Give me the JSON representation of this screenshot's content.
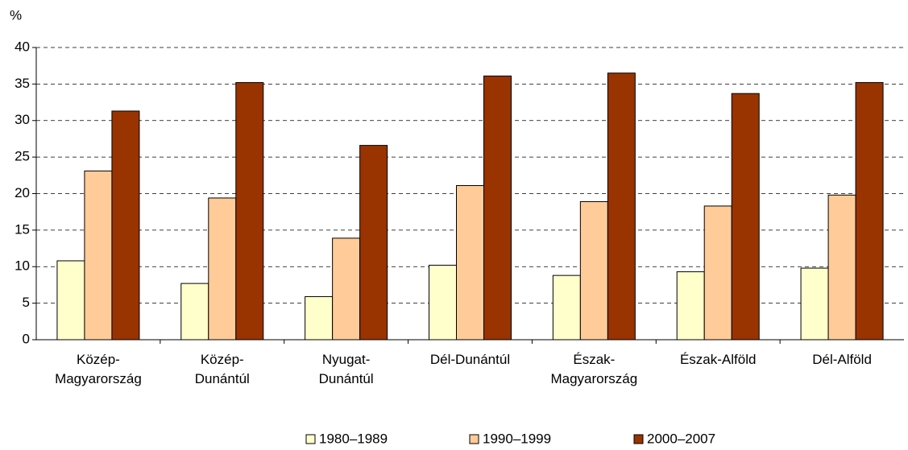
{
  "chart_data": {
    "type": "bar",
    "y_label": "%",
    "categories": [
      "Közép-\nMagyarország",
      "Közép-\nDunántúl",
      "Nyugat-\nDunántúl",
      "Dél-Dunántúl",
      "Észak-\nMagyarország",
      "Észak-Alföld",
      "Dél-Alföld"
    ],
    "series": [
      {
        "name": "1980–1989",
        "color": "#ffffcc",
        "values": [
          10.8,
          7.7,
          5.9,
          10.2,
          8.8,
          9.3,
          9.8
        ]
      },
      {
        "name": "1990–1999",
        "color": "#ffcc99",
        "values": [
          23.1,
          19.4,
          13.9,
          21.1,
          18.9,
          18.3,
          19.8
        ]
      },
      {
        "name": "2000–2007",
        "color": "#993300",
        "values": [
          31.3,
          35.2,
          26.6,
          36.1,
          36.5,
          33.7,
          35.2
        ]
      }
    ],
    "ylim": [
      0,
      40
    ],
    "yticks": [
      0,
      5,
      10,
      15,
      20,
      25,
      30,
      35,
      40
    ],
    "grid": true,
    "legend": "bottom"
  }
}
